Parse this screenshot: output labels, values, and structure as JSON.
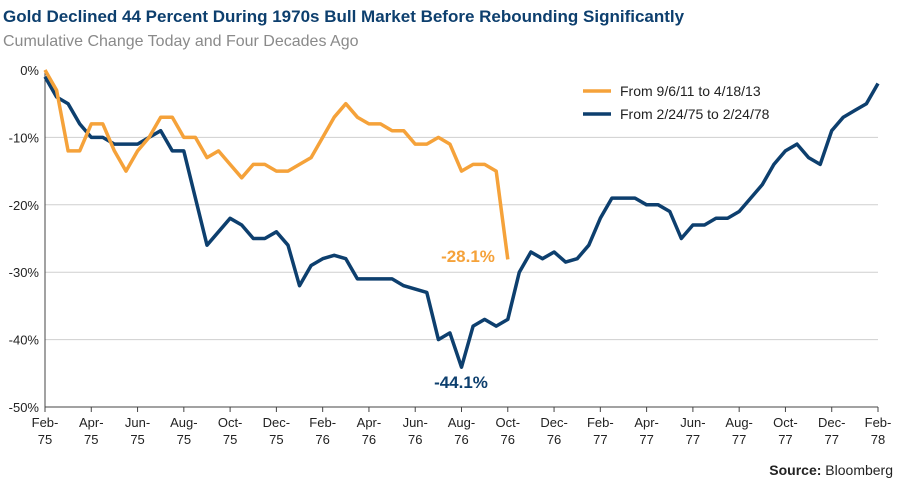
{
  "chart_data": {
    "type": "line",
    "title": "Gold Declined 44 Percent During 1970s Bull Market Before Rebounding Significantly",
    "subtitle": "Cumulative Change Today and Four Decades Ago",
    "source_label": "Source:",
    "source": "Bloomberg",
    "categories": [
      "Feb-75",
      null,
      null,
      null,
      "Apr-75",
      null,
      null,
      null,
      "Jun-75",
      null,
      null,
      null,
      "Aug-75",
      null,
      null,
      null,
      "Oct-75",
      null,
      null,
      null,
      "Dec-75",
      null,
      null,
      null,
      "Feb-76",
      null,
      null,
      null,
      "Apr-76",
      null,
      null,
      null,
      "Jun-76",
      null,
      null,
      null,
      "Aug-76",
      null,
      null,
      null,
      "Oct-76",
      null,
      null,
      null,
      "Dec-76",
      null,
      null,
      null,
      "Feb-77",
      null,
      null,
      null,
      "Apr-77",
      null,
      null,
      null,
      "Jun-77",
      null,
      null,
      null,
      "Aug-77",
      null,
      null,
      null,
      "Oct-77",
      null,
      null,
      null,
      "Dec-77",
      null,
      null,
      null,
      "Feb-78"
    ],
    "series": [
      {
        "name": "From 9/6/11 to 4/18/13",
        "color": "#f5a23a",
        "values": [
          0,
          -3,
          -12,
          -12,
          -8,
          -8,
          -12,
          -15,
          -12,
          -10,
          -7,
          -7,
          -10,
          -10,
          -13,
          -12,
          -14,
          -16,
          -14,
          -14,
          -15,
          -15,
          -14,
          -13,
          -10,
          -7,
          -5,
          -7,
          -8,
          -8,
          -9,
          -9,
          -11,
          -11,
          -10,
          -11,
          -15,
          -14,
          -14,
          -15,
          -28.1,
          null,
          null,
          null,
          null,
          null,
          null,
          null,
          null,
          null,
          null,
          null,
          null,
          null,
          null,
          null,
          null,
          null,
          null,
          null,
          null,
          null,
          null,
          null,
          null,
          null,
          null,
          null,
          null,
          null,
          null,
          null,
          null
        ]
      },
      {
        "name": "From 2/24/75 to 2/24/78",
        "color": "#0d3f6e",
        "values": [
          -1,
          -4,
          -5,
          -8,
          -10,
          -10,
          -11,
          -11,
          -11,
          -10,
          -9,
          -12,
          -12,
          -19,
          -26,
          -24,
          -22,
          -23,
          -25,
          -25,
          -24,
          -26,
          -32,
          -29,
          -28,
          -27.5,
          -28,
          -31,
          -31,
          -31,
          -31,
          -32,
          -32.5,
          -33,
          -40,
          -39,
          -44.1,
          -38,
          -37,
          -38,
          -37,
          -30,
          -27,
          -28,
          -27,
          -28.5,
          -28,
          -26,
          -22,
          -19,
          -19,
          -19,
          -20,
          -20,
          -21,
          -25,
          -23,
          -23,
          -22,
          -22,
          -21,
          -19,
          -17,
          -14,
          -12,
          -11,
          -13,
          -14,
          -9,
          -7,
          -6,
          -5,
          -2
        ]
      }
    ],
    "annotations": [
      {
        "text": "-28.1%",
        "color": "#f5a23a"
      },
      {
        "text": "-44.1%",
        "color": "#0d3f6e"
      }
    ],
    "ylim": [
      -50,
      0
    ],
    "yticks": [
      {
        "value": 0,
        "label": "0%"
      },
      {
        "value": -10,
        "label": "-10%"
      },
      {
        "value": -20,
        "label": "-20%"
      },
      {
        "value": -30,
        "label": "-30%"
      },
      {
        "value": -40,
        "label": "-40%"
      },
      {
        "value": -50,
        "label": "-50%"
      }
    ],
    "grid": true,
    "legend": "top-right"
  }
}
